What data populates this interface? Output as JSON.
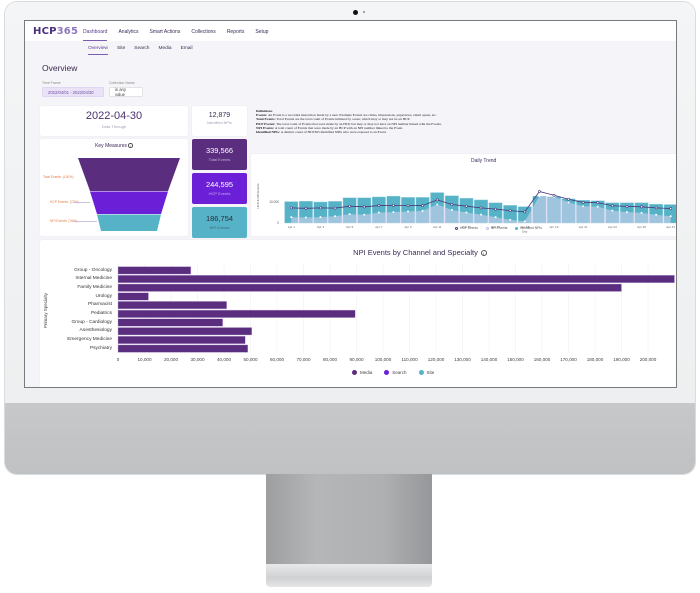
{
  "app": {
    "logo_prefix": "HCP",
    "logo_suffix": "365",
    "top_nav": [
      "Dashboard",
      "Analytics",
      "Smart Actions",
      "Collections",
      "Reports",
      "Setup"
    ],
    "top_nav_active": "Dashboard",
    "sub_nav": [
      "Overview",
      "Site",
      "Search",
      "Media",
      "Email"
    ],
    "sub_nav_active": "Overview"
  },
  "page": {
    "title": "Overview",
    "filters": {
      "time_frame_label": "Time Frame",
      "time_frame_value": "2022/04/01 - 2022/04/30",
      "collection_label": "Collection Name",
      "collection_value": "is any value"
    }
  },
  "kpis": {
    "data_through_value": "2022-04-30",
    "data_through_label": "Data Through",
    "identified_npis_value": "12,879",
    "identified_npis_label": "Identified NPIs",
    "total_events_value": "339,566",
    "total_events_label": "Total Events",
    "hcp_events_value": "244,595",
    "hcp_events_label": "HCP Events",
    "npi_events_value": "186,754",
    "npi_events_label": "NPI Events"
  },
  "funnel": {
    "title": "Key Measures",
    "labels": [
      "Total Events: (100%)",
      "HCP Events: (72%)",
      "NPI Events: (76%)"
    ],
    "colors": [
      "#5a2d7e",
      "#6b1fd6",
      "#56b3c7"
    ]
  },
  "definitions": {
    "heading": "Definitions",
    "lines": [
      {
        "term": "Events:",
        "text": "An Event is a recorded interaction made by a user. Example Events are clicks, impressions, pageviews, email opens, etc."
      },
      {
        "term": "Total Events:",
        "text": "Total Events are the total count of Events initiated by a user, which may or may not be an HCP."
      },
      {
        "term": "HCP Events:",
        "text": "The total count of Events that were made by an HCP, but may or may not have an NPI number linked with the Events."
      },
      {
        "term": "NPI Events:",
        "text": "A total count of Events that were made by an HCP with an NPI number linked to the Event."
      },
      {
        "term": "Identified NPIs:",
        "text": "A distinct count of HCP365 Identified NPIs who were exposed to an Event."
      }
    ]
  },
  "colors": {
    "brand": "#4a2f7c",
    "media": "#5a2d7e",
    "search": "#6b1fd6",
    "site": "#56b3c7"
  },
  "chart_data": [
    {
      "type": "line",
      "title": "Daily Trend",
      "xlabel": "Day",
      "ylabel": "HCP & NPI Events",
      "x_tick_labels": [
        "Apr 1",
        "Apr 3",
        "Apr 5",
        "Apr 7",
        "Apr 9",
        "Apr 11",
        "Apr 13",
        "Apr 15",
        "Apr 17",
        "Apr 19",
        "Apr 21",
        "Apr 23",
        "Apr 25",
        "Apr 27"
      ],
      "y_tick_labels": [
        "0",
        "10,000"
      ],
      "x": [
        "Apr 1",
        "Apr 2",
        "Apr 3",
        "Apr 4",
        "Apr 5",
        "Apr 6",
        "Apr 7",
        "Apr 8",
        "Apr 9",
        "Apr 10",
        "Apr 11",
        "Apr 12",
        "Apr 13",
        "Apr 14",
        "Apr 15",
        "Apr 16",
        "Apr 17",
        "Apr 18",
        "Apr 19",
        "Apr 20",
        "Apr 21",
        "Apr 22",
        "Apr 23",
        "Apr 24",
        "Apr 25",
        "Apr 26",
        "Apr 27"
      ],
      "series": [
        {
          "name": "HCP Events",
          "kind": "line",
          "values": [
            7200,
            7000,
            7200,
            7100,
            8000,
            7700,
            8300,
            8400,
            8400,
            8300,
            11000,
            8800,
            8000,
            7200,
            6600,
            5900,
            5300,
            15000,
            13200,
            11300,
            9800,
            9700,
            8200,
            7900,
            7700,
            7200,
            6900
          ]
        },
        {
          "name": "NPI Events",
          "kind": "area",
          "values": [
            2800,
            2600,
            2800,
            3200,
            4200,
            3900,
            5000,
            5200,
            5500,
            5800,
            8800,
            6200,
            5000,
            4000,
            2800,
            1500,
            800,
            12800,
            12500,
            9800,
            8000,
            7800,
            5900,
            5200,
            4800,
            3900,
            3200
          ]
        },
        {
          "name": "Identified NPIs",
          "kind": "bar",
          "values": [
            10200,
            10400,
            10000,
            10300,
            12000,
            12000,
            12400,
            12800,
            12200,
            12200,
            14500,
            13000,
            11800,
            11000,
            9600,
            8400,
            7800,
            12800,
            12500,
            11500,
            10800,
            10600,
            9600,
            9600,
            9600,
            9000,
            8800
          ]
        }
      ],
      "legend": [
        "HCP Events",
        "NPI Events",
        "Identified NPIs"
      ]
    },
    {
      "type": "bar",
      "orientation": "horizontal",
      "title": "NPI Events by Channel and Specialty",
      "ylabel": "Primary Specialty",
      "xlabel": "",
      "categories": [
        "Group - Oncology",
        "Internal Medicine",
        "Family Medicine",
        "Urology",
        "Pharmacist",
        "Pediatrics",
        "Group - Cardiology",
        "Anesthesiology",
        "Emergency Medicine",
        "Psychiatry"
      ],
      "series": [
        {
          "name": "Media",
          "values": [
            27500,
            210000,
            190000,
            11500,
            41000,
            89500,
            39500,
            50500,
            48000,
            49000
          ]
        },
        {
          "name": "Search",
          "values": [
            0,
            0,
            0,
            0,
            0,
            0,
            0,
            0,
            0,
            0
          ]
        },
        {
          "name": "Site",
          "values": [
            0,
            0,
            0,
            0,
            0,
            0,
            0,
            0,
            0,
            0
          ]
        }
      ],
      "x_tick_labels": [
        "0",
        "10,000",
        "20,000",
        "30,000",
        "40,000",
        "50,000",
        "60,000",
        "70,000",
        "80,000",
        "90,000",
        "100,000",
        "110,000",
        "120,000",
        "130,000",
        "140,000",
        "150,000",
        "160,000",
        "170,000",
        "180,000",
        "190,000",
        "200,000"
      ],
      "xlim": [
        0,
        205000
      ],
      "legend": [
        "Media",
        "Search",
        "Site"
      ],
      "legend_position": "bottom",
      "grid": true
    }
  ]
}
